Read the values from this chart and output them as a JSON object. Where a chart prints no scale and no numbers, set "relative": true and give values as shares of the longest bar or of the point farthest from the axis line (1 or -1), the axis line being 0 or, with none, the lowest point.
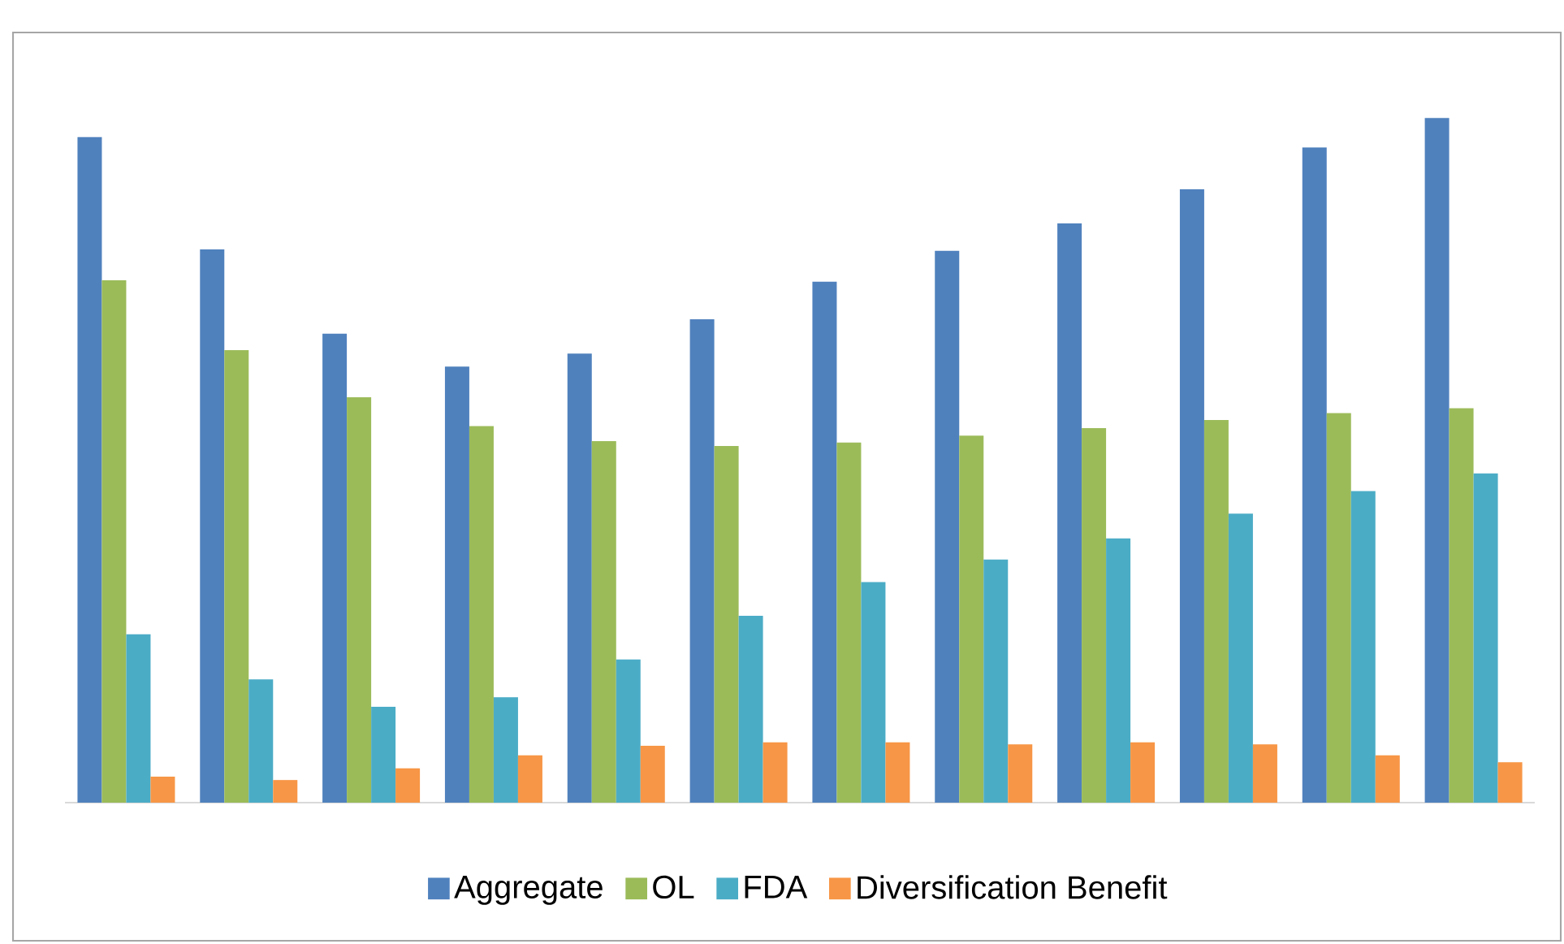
{
  "chart_data": {
    "type": "bar",
    "relative": true,
    "legend": "bottom",
    "categories": [
      null,
      null,
      null,
      null,
      null,
      null,
      null,
      null,
      null,
      null,
      null,
      null
    ],
    "series": [
      {
        "name": "Aggregate",
        "color": "#4f81bd",
        "values": [
          0.972,
          0.808,
          0.685,
          0.637,
          0.656,
          0.706,
          0.761,
          0.806,
          0.846,
          0.896,
          0.957,
          1
        ]
      },
      {
        "name": "OL",
        "color": "#9bbb59",
        "values": [
          0.763,
          0.661,
          0.592,
          0.55,
          0.528,
          0.521,
          0.526,
          0.536,
          0.547,
          0.559,
          0.569,
          0.576
        ]
      },
      {
        "name": "FDA",
        "color": "#4bacc6",
        "values": [
          0.246,
          0.18,
          0.14,
          0.154,
          0.209,
          0.273,
          0.322,
          0.355,
          0.386,
          0.422,
          0.455,
          0.481
        ]
      },
      {
        "name": "Diversification Benefit",
        "color": "#f79646",
        "values": [
          0.038,
          0.033,
          0.05,
          0.069,
          0.083,
          0.088,
          0.088,
          0.085,
          0.088,
          0.085,
          0.069,
          0.059
        ]
      }
    ]
  }
}
